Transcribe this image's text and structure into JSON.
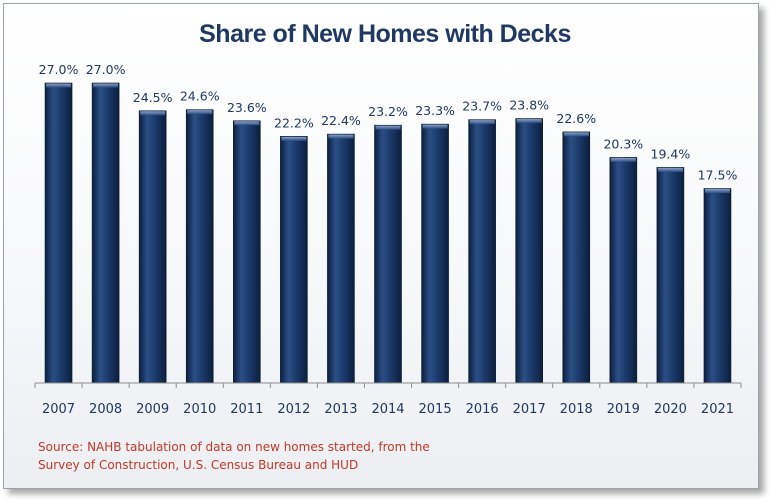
{
  "chart_data": {
    "type": "bar",
    "title": "Share of New Homes with Decks",
    "categories": [
      "2007",
      "2008",
      "2009",
      "2010",
      "2011",
      "2012",
      "2013",
      "2014",
      "2015",
      "2016",
      "2017",
      "2018",
      "2019",
      "2020",
      "2021"
    ],
    "values": [
      27.0,
      27.0,
      24.5,
      24.6,
      23.6,
      22.2,
      22.4,
      23.2,
      23.3,
      23.7,
      23.8,
      22.6,
      20.3,
      19.4,
      17.5
    ],
    "value_labels": [
      "27.0%",
      "27.0%",
      "24.5%",
      "24.6%",
      "23.6%",
      "22.2%",
      "22.4%",
      "23.2%",
      "23.3%",
      "23.7%",
      "23.8%",
      "22.6%",
      "20.3%",
      "19.4%",
      "17.5%"
    ],
    "xlabel": "",
    "ylabel": "",
    "ylim": [
      0,
      27.0
    ],
    "grid": false,
    "bar_color": "#17365d"
  },
  "source": {
    "line1": "Source: NAHB tabulation of data on new homes started, from the",
    "line2": "Survey of Construction, U.S. Census Bureau and HUD"
  }
}
